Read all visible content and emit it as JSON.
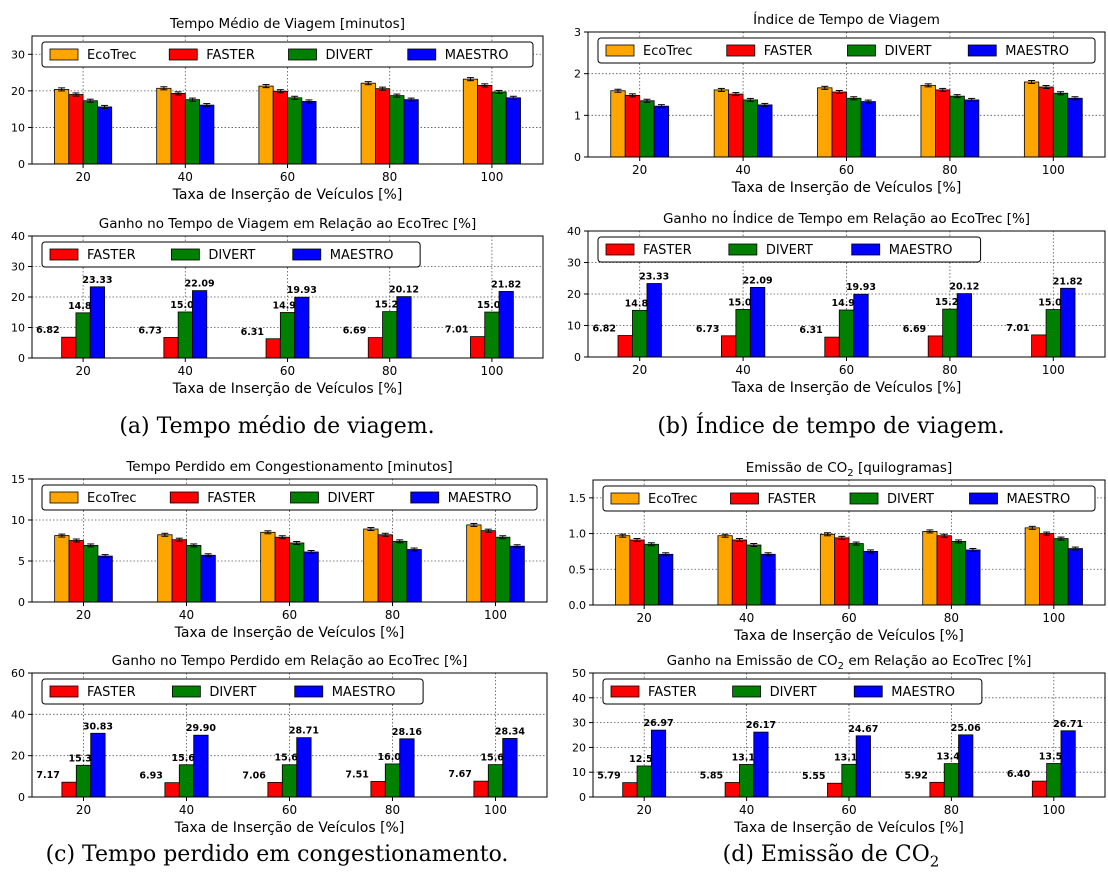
{
  "colors": {
    "EcoTrec": "#ffa500",
    "FASTER": "#ff0000",
    "DIVERT": "#008000",
    "MAESTRO": "#0000ff"
  },
  "captions": {
    "a": "(a)  Tempo médio de viagem.",
    "b": "(b)  Índice de tempo de viagem.",
    "c": "(c)  Tempo perdido em congestionamento.",
    "d_prefix": "(d)  Emissão de CO",
    "d_sub": "2"
  },
  "chart_data": [
    {
      "id": "a-top",
      "type": "bar",
      "title": "Tempo Médio de Viagem [minutos]",
      "xlabel": "Taxa de Inserção de Veículos [%]",
      "ylabel": "",
      "categories": [
        "20",
        "40",
        "60",
        "80",
        "100"
      ],
      "ylim": [
        0,
        35
      ],
      "yticks": [
        0,
        10,
        20,
        30
      ],
      "grid": true,
      "legend": "top",
      "series": [
        {
          "name": "EcoTrec",
          "values": [
            20.4,
            20.7,
            21.3,
            22.1,
            23.2
          ]
        },
        {
          "name": "FASTER",
          "values": [
            19.0,
            19.3,
            19.9,
            20.6,
            21.5
          ]
        },
        {
          "name": "DIVERT",
          "values": [
            17.3,
            17.6,
            18.1,
            18.7,
            19.7
          ]
        },
        {
          "name": "MAESTRO",
          "values": [
            15.6,
            16.1,
            17.1,
            17.6,
            18.1
          ]
        }
      ]
    },
    {
      "id": "a-bottom",
      "type": "bar",
      "title": "Ganho no Tempo de Viagem em Relação ao EcoTrec [%]",
      "xlabel": "Taxa de Inserção de Veículos [%]",
      "ylabel": "",
      "categories": [
        "20",
        "40",
        "60",
        "80",
        "100"
      ],
      "ylim": [
        0,
        40
      ],
      "yticks": [
        0,
        10,
        20,
        30,
        40
      ],
      "grid": true,
      "legend": "top-left",
      "series": [
        {
          "name": "FASTER",
          "values": [
            6.82,
            6.73,
            6.31,
            6.69,
            7.01
          ],
          "labels": [
            "6.82",
            "6.73",
            "6.31",
            "6.69",
            "7.01"
          ]
        },
        {
          "name": "DIVERT",
          "values": [
            14.81,
            15.09,
            14.92,
            15.2,
            15.06
          ],
          "labels": [
            "14.81",
            "15.09",
            "14.92",
            "15.20",
            "15.06"
          ]
        },
        {
          "name": "MAESTRO",
          "values": [
            23.33,
            22.09,
            19.93,
            20.12,
            21.82
          ],
          "labels": [
            "23.33",
            "22.09",
            "19.93",
            "20.12",
            "21.82"
          ]
        }
      ]
    },
    {
      "id": "b-top",
      "type": "bar",
      "title": "Índice de Tempo de Viagem",
      "xlabel": "Taxa de Inserção de Veículos [%]",
      "ylabel": "",
      "categories": [
        "20",
        "40",
        "60",
        "80",
        "100"
      ],
      "ylim": [
        0,
        3
      ],
      "yticks": [
        0,
        1,
        2,
        3
      ],
      "grid": true,
      "legend": "top",
      "series": [
        {
          "name": "EcoTrec",
          "values": [
            1.59,
            1.61,
            1.66,
            1.72,
            1.8
          ]
        },
        {
          "name": "FASTER",
          "values": [
            1.48,
            1.51,
            1.56,
            1.61,
            1.68
          ]
        },
        {
          "name": "DIVERT",
          "values": [
            1.35,
            1.37,
            1.41,
            1.46,
            1.53
          ]
        },
        {
          "name": "MAESTRO",
          "values": [
            1.22,
            1.25,
            1.33,
            1.37,
            1.41
          ]
        }
      ]
    },
    {
      "id": "b-bottom",
      "type": "bar",
      "title": "Ganho no Índice de Tempo em Relação ao EcoTrec [%]",
      "xlabel": "Taxa de Inserção de Veículos [%]",
      "ylabel": "",
      "categories": [
        "20",
        "40",
        "60",
        "80",
        "100"
      ],
      "ylim": [
        0,
        40
      ],
      "yticks": [
        0,
        10,
        20,
        30,
        40
      ],
      "grid": true,
      "legend": "top-left",
      "series": [
        {
          "name": "FASTER",
          "values": [
            6.82,
            6.73,
            6.31,
            6.69,
            7.01
          ],
          "labels": [
            "6.82",
            "6.73",
            "6.31",
            "6.69",
            "7.01"
          ]
        },
        {
          "name": "DIVERT",
          "values": [
            14.81,
            15.09,
            14.92,
            15.2,
            15.06
          ],
          "labels": [
            "14.81",
            "15.09",
            "14.92",
            "15.20",
            "15.06"
          ]
        },
        {
          "name": "MAESTRO",
          "values": [
            23.33,
            22.09,
            19.93,
            20.12,
            21.82
          ],
          "labels": [
            "23.33",
            "22.09",
            "19.93",
            "20.12",
            "21.82"
          ]
        }
      ]
    },
    {
      "id": "c-top",
      "type": "bar",
      "title": "Tempo Perdido em Congestionamento [minutos]",
      "xlabel": "Taxa de Inserção de Veículos [%]",
      "ylabel": "",
      "categories": [
        "20",
        "40",
        "60",
        "80",
        "100"
      ],
      "ylim": [
        0,
        15
      ],
      "yticks": [
        0,
        5,
        10,
        15
      ],
      "grid": true,
      "legend": "top",
      "series": [
        {
          "name": "EcoTrec",
          "values": [
            8.1,
            8.2,
            8.5,
            8.9,
            9.4
          ]
        },
        {
          "name": "FASTER",
          "values": [
            7.5,
            7.6,
            7.9,
            8.2,
            8.7
          ]
        },
        {
          "name": "DIVERT",
          "values": [
            6.9,
            6.9,
            7.2,
            7.4,
            7.9
          ]
        },
        {
          "name": "MAESTRO",
          "values": [
            5.6,
            5.7,
            6.1,
            6.4,
            6.8
          ]
        }
      ]
    },
    {
      "id": "c-bottom",
      "type": "bar",
      "title": "Ganho no Tempo Perdido em Relação ao EcoTrec [%]",
      "xlabel": "Taxa de Inserção de Veículos [%]",
      "ylabel": "",
      "categories": [
        "20",
        "40",
        "60",
        "80",
        "100"
      ],
      "ylim": [
        0,
        60
      ],
      "yticks": [
        0,
        20,
        40,
        60
      ],
      "grid": true,
      "legend": "top-left",
      "series": [
        {
          "name": "FASTER",
          "values": [
            7.17,
            6.93,
            7.06,
            7.51,
            7.67
          ],
          "labels": [
            "7.17",
            "6.93",
            "7.06",
            "7.51",
            "7.67"
          ]
        },
        {
          "name": "DIVERT",
          "values": [
            15.34,
            15.6,
            15.61,
            16.0,
            15.66
          ],
          "labels": [
            "15.34",
            "15.60",
            "15.61",
            "16.00",
            "15.66"
          ]
        },
        {
          "name": "MAESTRO",
          "values": [
            30.83,
            29.9,
            28.71,
            28.16,
            28.34
          ],
          "labels": [
            "30.83",
            "29.90",
            "28.71",
            "28.16",
            "28.34"
          ]
        }
      ]
    },
    {
      "id": "d-top",
      "type": "bar",
      "title": "Emissão de CO",
      "title_sub": "2",
      "title_suffix": " [quilogramas]",
      "xlabel": "Taxa de Inserção de Veículos [%]",
      "ylabel": "",
      "categories": [
        "20",
        "40",
        "60",
        "80",
        "100"
      ],
      "ylim": [
        0,
        1.75
      ],
      "yticks": [
        0.0,
        0.5,
        1.0,
        1.5
      ],
      "ytick_labels": [
        "0.0",
        "0.5",
        "1.0",
        "1.5"
      ],
      "grid": true,
      "legend": "top",
      "series": [
        {
          "name": "EcoTrec",
          "values": [
            0.97,
            0.97,
            0.99,
            1.03,
            1.08
          ]
        },
        {
          "name": "FASTER",
          "values": [
            0.91,
            0.91,
            0.94,
            0.97,
            1.0
          ]
        },
        {
          "name": "DIVERT",
          "values": [
            0.85,
            0.84,
            0.86,
            0.89,
            0.93
          ]
        },
        {
          "name": "MAESTRO",
          "values": [
            0.71,
            0.71,
            0.75,
            0.77,
            0.79
          ]
        }
      ]
    },
    {
      "id": "d-bottom",
      "type": "bar",
      "title": "Ganho na Emissão de CO",
      "title_sub": "2",
      "title_suffix": " em Relação ao EcoTrec [%]",
      "xlabel": "Taxa de Inserção de Veículos [%]",
      "ylabel": "",
      "categories": [
        "20",
        "40",
        "60",
        "80",
        "100"
      ],
      "ylim": [
        0,
        50
      ],
      "yticks": [
        0,
        10,
        20,
        30,
        40,
        50
      ],
      "grid": true,
      "legend": "top-left",
      "series": [
        {
          "name": "FASTER",
          "values": [
            5.79,
            5.85,
            5.55,
            5.92,
            6.4
          ],
          "labels": [
            "5.79",
            "5.85",
            "5.55",
            "5.92",
            "6.40"
          ]
        },
        {
          "name": "DIVERT",
          "values": [
            12.51,
            13.12,
            13.17,
            13.46,
            13.51
          ],
          "labels": [
            "12.51",
            "13.12",
            "13.17",
            "13.46",
            "13.51"
          ]
        },
        {
          "name": "MAESTRO",
          "values": [
            26.97,
            26.17,
            24.67,
            25.06,
            26.71
          ],
          "labels": [
            "26.97",
            "26.17",
            "24.67",
            "25.06",
            "26.71"
          ]
        }
      ]
    }
  ]
}
